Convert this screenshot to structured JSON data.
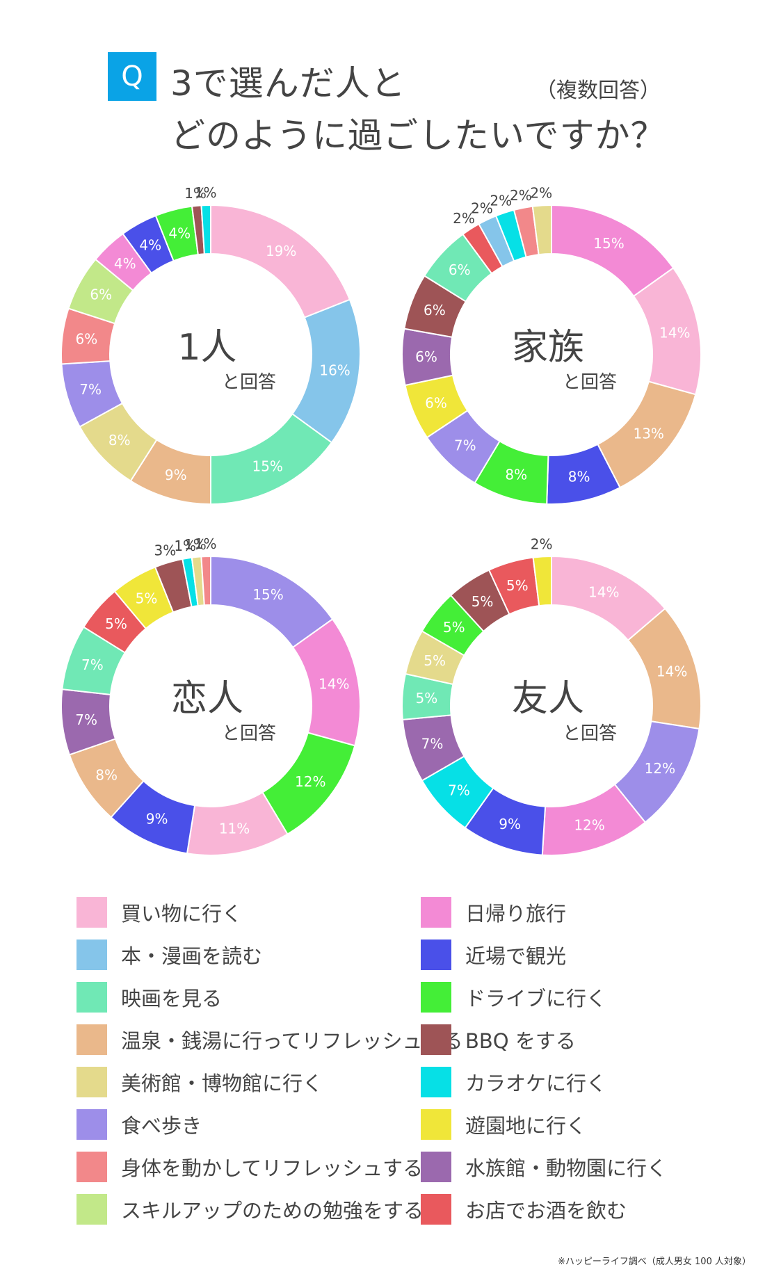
{
  "header": {
    "badge": "Q",
    "title_line1": "3で選んだ人と",
    "title_line2": "どのように過ごしたいですか？",
    "note": "（複数回答）"
  },
  "legend": [
    {
      "label": "買い物に行く",
      "color": "#f9b5d6"
    },
    {
      "label": "日帰り旅行",
      "color": "#f38ad5"
    },
    {
      "label": "本・漫画を読む",
      "color": "#85c5ea"
    },
    {
      "label": "近場で観光",
      "color": "#4a50e9"
    },
    {
      "label": "映画を見る",
      "color": "#70e8b5"
    },
    {
      "label": "ドライブに行く",
      "color": "#44ee37"
    },
    {
      "label": "温泉・銭湯に行ってリフレッシュする",
      "color": "#eab88b"
    },
    {
      "label": "BBQ をする",
      "color": "#9e5456"
    },
    {
      "label": "美術館・博物館に行く",
      "color": "#e4da8c"
    },
    {
      "label": "カラオケに行く",
      "color": "#06e0e6"
    },
    {
      "label": "食べ歩き",
      "color": "#9d8ee9"
    },
    {
      "label": "遊園地に行く",
      "color": "#f0e639"
    },
    {
      "label": "身体を動かしてリフレッシュする",
      "color": "#f2888a"
    },
    {
      "label": "水族館・動物園に行く",
      "color": "#9b69ae"
    },
    {
      "label": "スキルアップのための勉強をする",
      "color": "#c2e889"
    },
    {
      "label": "お店でお酒を飲む",
      "color": "#e9595d"
    }
  ],
  "chart_data": [
    {
      "type": "pie",
      "title": "1人",
      "subtitle": "と回答",
      "categories": [
        "買い物に行く",
        "本・漫画を読む",
        "映画を見る",
        "温泉・銭湯に行ってリフレッシュする",
        "美術館・博物館に行く",
        "食べ歩き",
        "身体を動かしてリフレッシュする",
        "スキルアップのための勉強をする",
        "日帰り旅行",
        "近場で観光",
        "ドライブに行く",
        "BBQ をする",
        "カラオケに行く"
      ],
      "values": [
        19,
        16,
        15,
        9,
        8,
        7,
        6,
        6,
        4,
        4,
        4,
        1,
        1
      ],
      "labels": [
        "19%",
        "16%",
        "15%",
        "9%",
        "8%",
        "7%",
        "6%",
        "6%",
        "4%",
        "4%",
        "4%",
        "1%",
        "1%"
      ],
      "colors": [
        "#f9b5d6",
        "#85c5ea",
        "#70e8b5",
        "#eab88b",
        "#e4da8c",
        "#9d8ee9",
        "#f2888a",
        "#c2e889",
        "#f38ad5",
        "#4a50e9",
        "#44ee37",
        "#9e5456",
        "#06e0e6"
      ]
    },
    {
      "type": "pie",
      "title": "家族",
      "subtitle": "と回答",
      "categories": [
        "日帰り旅行",
        "買い物に行く",
        "温泉・銭湯に行ってリフレッシュする",
        "近場で観光",
        "ドライブに行く",
        "食べ歩き",
        "遊園地に行く",
        "水族館・動物園に行く",
        "BBQ をする",
        "映画を見る",
        "お店でお酒を飲む",
        "本・漫画を読む",
        "カラオケに行く",
        "身体を動かしてリフレッシュする",
        "美術館・博物館に行く"
      ],
      "values": [
        15,
        14,
        13,
        8,
        8,
        7,
        6,
        6,
        6,
        6,
        2,
        2,
        2,
        2,
        2
      ],
      "labels": [
        "15%",
        "14%",
        "13%",
        "8%",
        "8%",
        "7%",
        "6%",
        "6%",
        "6%",
        "6%",
        "2%",
        "2%",
        "2%",
        "2%",
        "2%"
      ],
      "colors": [
        "#f38ad5",
        "#f9b5d6",
        "#eab88b",
        "#4a50e9",
        "#44ee37",
        "#9d8ee9",
        "#f0e639",
        "#9b69ae",
        "#9e5456",
        "#70e8b5",
        "#e9595d",
        "#85c5ea",
        "#06e0e6",
        "#f2888a",
        "#e4da8c"
      ]
    },
    {
      "type": "pie",
      "title": "恋人",
      "subtitle": "と回答",
      "categories": [
        "食べ歩き",
        "日帰り旅行",
        "ドライブに行く",
        "買い物に行く",
        "近場で観光",
        "温泉・銭湯に行ってリフレッシュする",
        "水族館・動物園に行く",
        "映画を見る",
        "お店でお酒を飲む",
        "遊園地に行く",
        "BBQ をする",
        "カラオケに行く",
        "美術館・博物館に行く",
        "身体を動かしてリフレッシュする"
      ],
      "values": [
        15,
        14,
        12,
        11,
        9,
        8,
        7,
        7,
        5,
        5,
        3,
        1,
        1,
        1
      ],
      "labels": [
        "15%",
        "14%",
        "12%",
        "11%",
        "9%",
        "8%",
        "7%",
        "7%",
        "5%",
        "5%",
        "3%",
        "1%",
        "1%",
        "1%"
      ],
      "colors": [
        "#9d8ee9",
        "#f38ad5",
        "#44ee37",
        "#f9b5d6",
        "#4a50e9",
        "#eab88b",
        "#9b69ae",
        "#70e8b5",
        "#e9595d",
        "#f0e639",
        "#9e5456",
        "#06e0e6",
        "#e4da8c",
        "#f2888a"
      ]
    },
    {
      "type": "pie",
      "title": "友人",
      "subtitle": "と回答",
      "categories": [
        "買い物に行く",
        "温泉・銭湯に行ってリフレッシュする",
        "食べ歩き",
        "日帰り旅行",
        "近場で観光",
        "カラオケに行く",
        "水族館・動物園に行く",
        "映画を見る",
        "美術館・博物館に行く",
        "ドライブに行く",
        "BBQ をする",
        "お店でお酒を飲む",
        "遊園地に行く"
      ],
      "values": [
        14,
        14,
        12,
        12,
        9,
        7,
        7,
        5,
        5,
        5,
        5,
        5,
        2
      ],
      "labels": [
        "14%",
        "14%",
        "12%",
        "12%",
        "9%",
        "7%",
        "7%",
        "5%",
        "5%",
        "5%",
        "5%",
        "5%",
        "2%"
      ],
      "colors": [
        "#f9b5d6",
        "#eab88b",
        "#9d8ee9",
        "#f38ad5",
        "#4a50e9",
        "#06e0e6",
        "#9b69ae",
        "#70e8b5",
        "#e4da8c",
        "#44ee37",
        "#9e5456",
        "#e9595d",
        "#f0e639"
      ]
    }
  ],
  "footnote": "※ハッピーライフ調べ（成人男女 100 人対象）"
}
